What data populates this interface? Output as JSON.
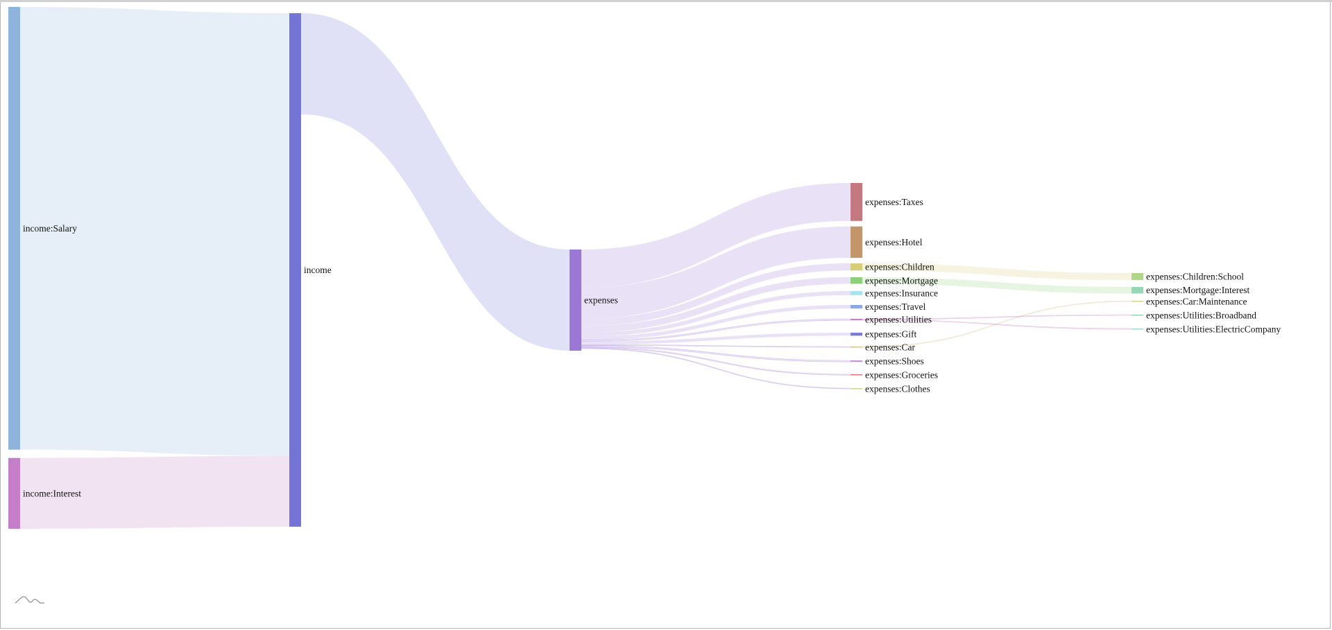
{
  "chart_data": {
    "type": "sankey",
    "title": "",
    "nodes": [
      {
        "id": "income:Salary",
        "label": "income:Salary",
        "column": 0,
        "color": "#8fb4dc"
      },
      {
        "id": "income:Interest",
        "label": "income:Interest",
        "column": 0,
        "color": "#c47fc8"
      },
      {
        "id": "income",
        "label": "income",
        "column": 1,
        "color": "#7474d6"
      },
      {
        "id": "expenses",
        "label": "expenses",
        "column": 2,
        "color": "#9b78d6"
      },
      {
        "id": "expenses:Taxes",
        "label": "expenses:Taxes",
        "column": 3,
        "color": "#c47880"
      },
      {
        "id": "expenses:Hotel",
        "label": "expenses:Hotel",
        "column": 3,
        "color": "#c4956a"
      },
      {
        "id": "expenses:Children",
        "label": "expenses:Children",
        "column": 3,
        "color": "#d6cf78"
      },
      {
        "id": "expenses:Mortgage",
        "label": "expenses:Mortgage",
        "column": 3,
        "color": "#8fcf7a"
      },
      {
        "id": "expenses:Insurance",
        "label": "expenses:Insurance",
        "column": 3,
        "color": "#a8e3ef"
      },
      {
        "id": "expenses:Travel",
        "label": "expenses:Travel",
        "column": 3,
        "color": "#8fa8e3"
      },
      {
        "id": "expenses:Utilities",
        "label": "expenses:Utilities",
        "column": 3,
        "color": "#c87fc8"
      },
      {
        "id": "expenses:Gift",
        "label": "expenses:Gift",
        "column": 3,
        "color": "#7c7cd6"
      },
      {
        "id": "expenses:Car",
        "label": "expenses:Car",
        "column": 3,
        "color": "#d6c48f"
      },
      {
        "id": "expenses:Shoes",
        "label": "expenses:Shoes",
        "column": 3,
        "color": "#c88fd6"
      },
      {
        "id": "expenses:Groceries",
        "label": "expenses:Groceries",
        "column": 3,
        "color": "#d67878"
      },
      {
        "id": "expenses:Clothes",
        "label": "expenses:Clothes",
        "column": 3,
        "color": "#c4d68f"
      },
      {
        "id": "expenses:Children:School",
        "label": "expenses:Children:School",
        "column": 4,
        "color": "#b0d68a"
      },
      {
        "id": "expenses:Mortgage:Interest",
        "label": "expenses:Mortgage:Interest",
        "column": 4,
        "color": "#98d6b8"
      },
      {
        "id": "expenses:Car:Maintenance",
        "label": "expenses:Car:Maintenance",
        "column": 4,
        "color": "#d6cf8f"
      },
      {
        "id": "expenses:Utilities:Broadband",
        "label": "expenses:Utilities:Broadband",
        "column": 4,
        "color": "#8fd6a8"
      },
      {
        "id": "expenses:Utilities:ElectricCompany",
        "label": "expenses:Utilities:ElectricCompany",
        "column": 4,
        "color": "#a8d6d6"
      }
    ],
    "links": [
      {
        "source": "income:Salary",
        "target": "income",
        "value": 875
      },
      {
        "source": "income:Interest",
        "target": "income",
        "value": 140
      },
      {
        "source": "income",
        "target": "expenses",
        "value": 200
      },
      {
        "source": "expenses",
        "target": "expenses:Taxes",
        "value": 75
      },
      {
        "source": "expenses",
        "target": "expenses:Hotel",
        "value": 62
      },
      {
        "source": "expenses",
        "target": "expenses:Children",
        "value": 14
      },
      {
        "source": "expenses",
        "target": "expenses:Mortgage",
        "value": 13
      },
      {
        "source": "expenses",
        "target": "expenses:Insurance",
        "value": 8
      },
      {
        "source": "expenses",
        "target": "expenses:Travel",
        "value": 7
      },
      {
        "source": "expenses",
        "target": "expenses:Utilities",
        "value": 3
      },
      {
        "source": "expenses",
        "target": "expenses:Gift",
        "value": 6
      },
      {
        "source": "expenses",
        "target": "expenses:Car",
        "value": 1.5
      },
      {
        "source": "expenses",
        "target": "expenses:Shoes",
        "value": 3
      },
      {
        "source": "expenses",
        "target": "expenses:Groceries",
        "value": 2
      },
      {
        "source": "expenses",
        "target": "expenses:Clothes",
        "value": 1.5
      },
      {
        "source": "expenses:Children",
        "target": "expenses:Children:School",
        "value": 14
      },
      {
        "source": "expenses:Mortgage",
        "target": "expenses:Mortgage:Interest",
        "value": 13
      },
      {
        "source": "expenses:Car",
        "target": "expenses:Car:Maintenance",
        "value": 1.5
      },
      {
        "source": "expenses:Utilities",
        "target": "expenses:Utilities:Broadband",
        "value": 1.5
      },
      {
        "source": "expenses:Utilities",
        "target": "expenses:Utilities:ElectricCompany",
        "value": 1.5
      }
    ]
  }
}
